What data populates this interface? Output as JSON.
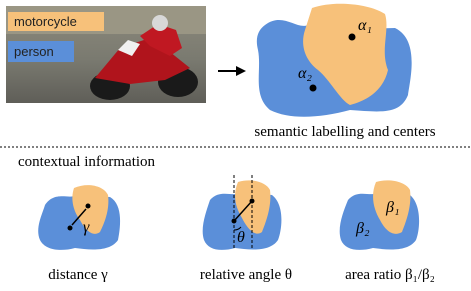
{
  "photo": {
    "labels": [
      "motorcycle",
      "person"
    ]
  },
  "segmentation": {
    "centers": [
      "α₁",
      "α₂"
    ],
    "caption": "semantic labelling and centers"
  },
  "section_title": "contextual information",
  "panels": [
    {
      "symbols": [
        "γ"
      ],
      "caption": "distance γ"
    },
    {
      "symbols": [
        "θ"
      ],
      "caption": "relative angle θ"
    },
    {
      "symbols": [
        "β₁",
        "β₂"
      ],
      "caption": "area ratio β₁/β₂"
    }
  ]
}
